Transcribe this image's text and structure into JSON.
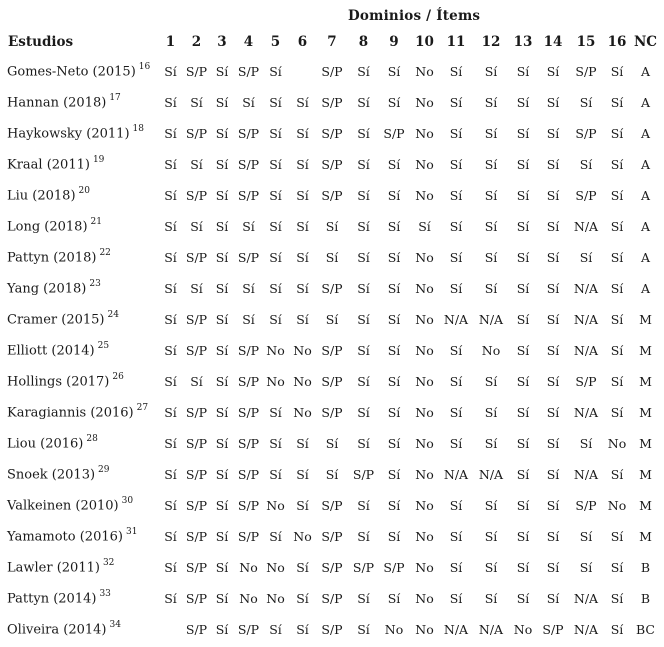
{
  "header": {
    "group_title": "Dominios / Ítems",
    "studies_label": "Estudios",
    "columns": [
      "1",
      "2",
      "3",
      "4",
      "5",
      "6",
      "7",
      "8",
      "9",
      "10",
      "11",
      "12",
      "13",
      "14",
      "15",
      "16",
      "NC"
    ]
  },
  "rows": [
    {
      "study": "Gomes-Neto (2015)",
      "ref": "16",
      "cells": [
        "Sí",
        "S/P",
        "Sí",
        "S/P",
        "Sí",
        "",
        "S/P",
        "Sí",
        "Sí",
        "No",
        "Sí",
        "Sí",
        "Sí",
        "Sí",
        "S/P",
        "Sí",
        "A"
      ]
    },
    {
      "study": "Hannan (2018)",
      "ref": "17",
      "cells": [
        "Sí",
        "Sí",
        "Sí",
        "Sí",
        "Sí",
        "Sí",
        "S/P",
        "Sí",
        "Sí",
        "No",
        "Sí",
        "Sí",
        "Sí",
        "Sí",
        "Sí",
        "Sí",
        "A"
      ]
    },
    {
      "study": "Haykowsky (2011)",
      "ref": "18",
      "cells": [
        "Sí",
        "S/P",
        "Sí",
        "S/P",
        "Sí",
        "Sí",
        "S/P",
        "Sí",
        "S/P",
        "No",
        "Sí",
        "Sí",
        "Sí",
        "Sí",
        "S/P",
        "Sí",
        "A"
      ]
    },
    {
      "study": "Kraal (2011)",
      "ref": "19",
      "cells": [
        "Sí",
        "Sí",
        "Sí",
        "S/P",
        "Sí",
        "Sí",
        "S/P",
        "Sí",
        "Sí",
        "No",
        "Sí",
        "Sí",
        "Sí",
        "Sí",
        "Sí",
        "Sí",
        "A"
      ]
    },
    {
      "study": "Liu (2018)",
      "ref": "20",
      "cells": [
        "Sí",
        "S/P",
        "Sí",
        "S/P",
        "Sí",
        "Sí",
        "S/P",
        "Sí",
        "Sí",
        "No",
        "Sí",
        "Sí",
        "Sí",
        "Sí",
        "S/P",
        "Sí",
        "A"
      ]
    },
    {
      "study": "Long (2018)",
      "ref": "21",
      "cells": [
        "Sí",
        "Sí",
        "Sí",
        "Sí",
        "Sí",
        "Sí",
        "Sí",
        "Sí",
        "Sí",
        "Sí",
        "Sí",
        "Sí",
        "Sí",
        "Sí",
        "N/A",
        "Sí",
        "A"
      ]
    },
    {
      "study": "Pattyn (2018)",
      "ref": "22",
      "cells": [
        "Sí",
        "S/P",
        "Sí",
        "S/P",
        "Sí",
        "Sí",
        "Sí",
        "Sí",
        "Sí",
        "No",
        "Sí",
        "Sí",
        "Sí",
        "Sí",
        "Sí",
        "Sí",
        "A"
      ]
    },
    {
      "study": "Yang (2018)",
      "ref": "23",
      "cells": [
        "Sí",
        "Sí",
        "Sí",
        "Sí",
        "Sí",
        "Sí",
        "S/P",
        "Sí",
        "Sí",
        "No",
        "Sí",
        "Sí",
        "Sí",
        "Sí",
        "N/A",
        "Sí",
        "A"
      ]
    },
    {
      "study": "Cramer (2015)",
      "ref": "24",
      "cells": [
        "Sí",
        "S/P",
        "Sí",
        "Sí",
        "Sí",
        "Sí",
        "Sí",
        "Sí",
        "Sí",
        "No",
        "N/A",
        "N/A",
        "Sí",
        "Sí",
        "N/A",
        "Sí",
        "M"
      ]
    },
    {
      "study": "Elliott (2014)",
      "ref": "25",
      "cells": [
        "Sí",
        "S/P",
        "Sí",
        "S/P",
        "No",
        "No",
        "S/P",
        "Sí",
        "Sí",
        "No",
        "Sí",
        "No",
        "Sí",
        "Sí",
        "N/A",
        "Sí",
        "M"
      ]
    },
    {
      "study": "Hollings (2017)",
      "ref": "26",
      "cells": [
        "Sí",
        "Sí",
        "Sí",
        "S/P",
        "No",
        "No",
        "S/P",
        "Sí",
        "Sí",
        "No",
        "Sí",
        "Sí",
        "Sí",
        "Sí",
        "S/P",
        "Sí",
        "M"
      ]
    },
    {
      "study": "Karagiannis (2016)",
      "ref": "27",
      "cells": [
        "Sí",
        "S/P",
        "Sí",
        "S/P",
        "Sí",
        "No",
        "S/P",
        "Sí",
        "Sí",
        "No",
        "Sí",
        "Sí",
        "Sí",
        "Sí",
        "N/A",
        "Sí",
        "M"
      ]
    },
    {
      "study": "Liou (2016)",
      "ref": "28",
      "cells": [
        "Sí",
        "S/P",
        "Sí",
        "S/P",
        "Sí",
        "Sí",
        "Sí",
        "Sí",
        "Sí",
        "No",
        "Sí",
        "Sí",
        "Sí",
        "Sí",
        "Sí",
        "No",
        "M"
      ]
    },
    {
      "study": "Snoek (2013)",
      "ref": "29",
      "cells": [
        "Sí",
        "S/P",
        "Sí",
        "S/P",
        "Sí",
        "Sí",
        "Sí",
        "S/P",
        "Sí",
        "No",
        "N/A",
        "N/A",
        "Sí",
        "Sí",
        "N/A",
        "Sí",
        "M"
      ]
    },
    {
      "study": "Valkeinen (2010)",
      "ref": "30",
      "cells": [
        "Sí",
        "S/P",
        "Sí",
        "S/P",
        "No",
        "Sí",
        "S/P",
        "Sí",
        "Sí",
        "No",
        "Sí",
        "Sí",
        "Sí",
        "Sí",
        "S/P",
        "No",
        "M"
      ]
    },
    {
      "study": "Yamamoto (2016)",
      "ref": "31",
      "cells": [
        "Sí",
        "S/P",
        "Sí",
        "S/P",
        "Sí",
        "No",
        "S/P",
        "Sí",
        "Sí",
        "No",
        "Sí",
        "Sí",
        "Sí",
        "Sí",
        "Sí",
        "Sí",
        "M"
      ]
    },
    {
      "study": "Lawler (2011)",
      "ref": "32",
      "cells": [
        "Sí",
        "S/P",
        "Sí",
        "No",
        "No",
        "Sí",
        "S/P",
        "S/P",
        "S/P",
        "No",
        "Sí",
        "Sí",
        "Sí",
        "Sí",
        "Sí",
        "Sí",
        "B"
      ]
    },
    {
      "study": "Pattyn (2014)",
      "ref": "33",
      "cells": [
        "Sí",
        "S/P",
        "Sí",
        "No",
        "No",
        "Sí",
        "S/P",
        "Sí",
        "Sí",
        "No",
        "Sí",
        "Sí",
        "Sí",
        "Sí",
        "N/A",
        "Sí",
        "B"
      ]
    },
    {
      "study": "Oliveira (2014)",
      "ref": "34",
      "cells": [
        "",
        "S/P",
        "Sí",
        "S/P",
        "Sí",
        "Sí",
        "S/P",
        "Sí",
        "No",
        "No",
        "N/A",
        "N/A",
        "No",
        "S/P",
        "N/A",
        "Sí",
        "BC"
      ]
    }
  ]
}
